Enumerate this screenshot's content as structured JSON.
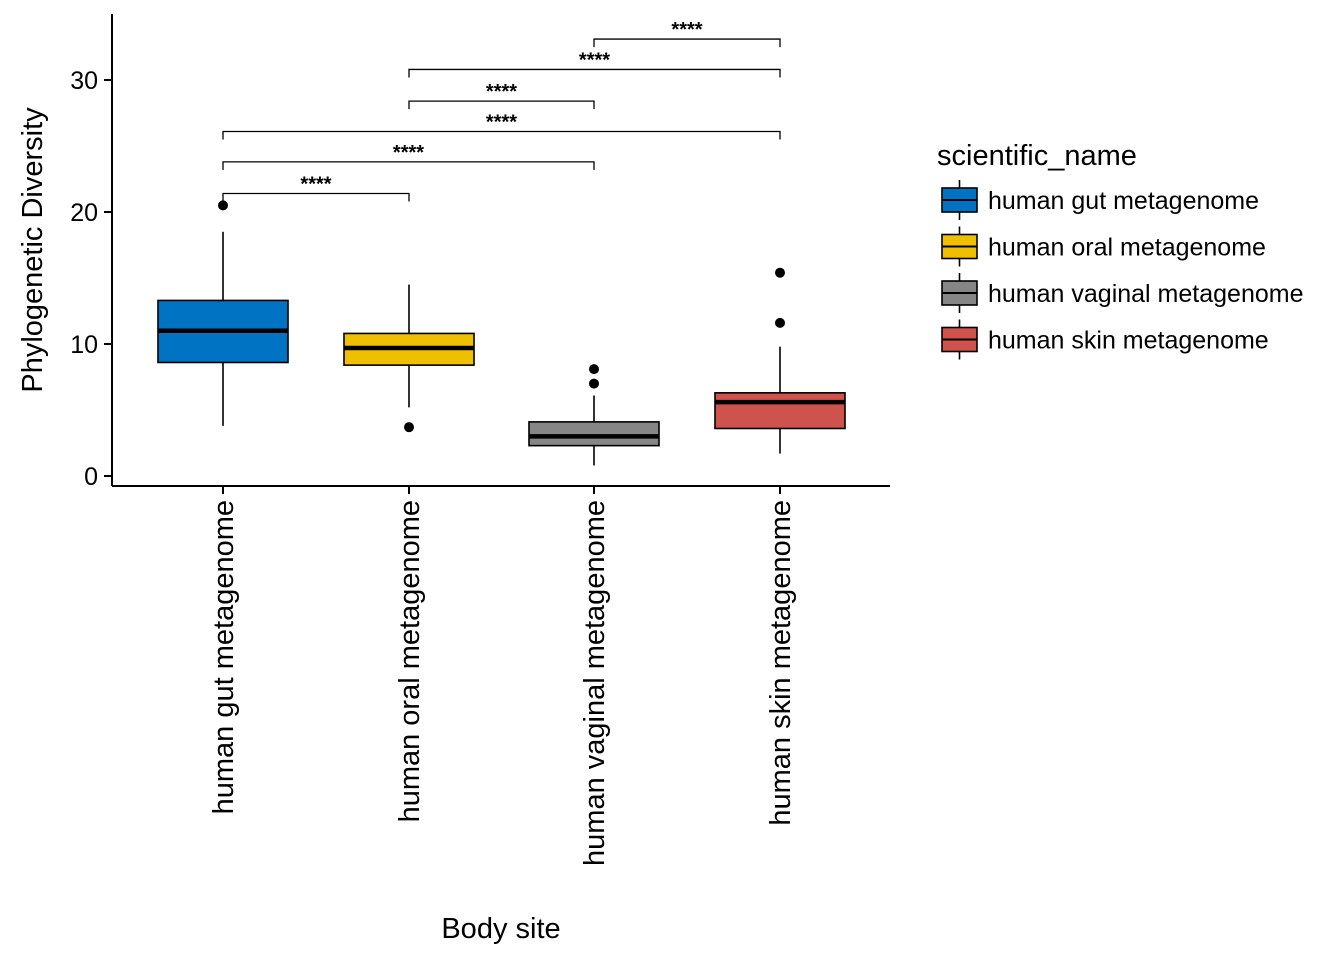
{
  "chart_data": {
    "type": "box",
    "title": "",
    "xlabel": "Body site",
    "ylabel": "Phylogenetic Diversity",
    "yticks": [
      0,
      10,
      20,
      30
    ],
    "ylim": [
      -0.8,
      35.0
    ],
    "grid": false,
    "legend": {
      "title": "scientific_name",
      "placement": "right",
      "entries": [
        {
          "label": "human gut metagenome",
          "color": "#0073C2"
        },
        {
          "label": "human oral metagenome",
          "color": "#EFC000"
        },
        {
          "label": "human vaginal metagenome",
          "color": "#868686"
        },
        {
          "label": "human skin metagenome",
          "color": "#CD534C"
        }
      ]
    },
    "categories": [
      "human gut metagenome",
      "human oral metagenome",
      "human vaginal metagenome",
      "human skin metagenome"
    ],
    "boxes": [
      {
        "category": "human gut metagenome",
        "color": "#0073C2",
        "whisker_low": 3.8,
        "q1": 8.6,
        "median": 11.0,
        "q3": 13.3,
        "whisker_high": 18.5,
        "outliers": [
          20.5
        ]
      },
      {
        "category": "human oral metagenome",
        "color": "#EFC000",
        "whisker_low": 5.2,
        "q1": 8.4,
        "median": 9.7,
        "q3": 10.8,
        "whisker_high": 14.5,
        "outliers": [
          3.7
        ]
      },
      {
        "category": "human vaginal metagenome",
        "color": "#868686",
        "whisker_low": 0.8,
        "q1": 2.3,
        "median": 3.0,
        "q3": 4.1,
        "whisker_high": 6.1,
        "outliers": [
          7.0,
          8.1
        ]
      },
      {
        "category": "human skin metagenome",
        "color": "#CD534C",
        "whisker_low": 1.7,
        "q1": 3.6,
        "median": 5.6,
        "q3": 6.3,
        "whisker_high": 9.8,
        "outliers": [
          11.6,
          15.4
        ]
      }
    ],
    "comparisons": [
      {
        "from": 0,
        "to": 1,
        "y": 21.4,
        "label": "****"
      },
      {
        "from": 0,
        "to": 2,
        "y": 23.8,
        "label": "****"
      },
      {
        "from": 0,
        "to": 3,
        "y": 26.1,
        "label": "****"
      },
      {
        "from": 1,
        "to": 2,
        "y": 28.4,
        "label": "****"
      },
      {
        "from": 1,
        "to": 3,
        "y": 30.8,
        "label": "****"
      },
      {
        "from": 2,
        "to": 3,
        "y": 33.1,
        "label": "****"
      }
    ]
  }
}
